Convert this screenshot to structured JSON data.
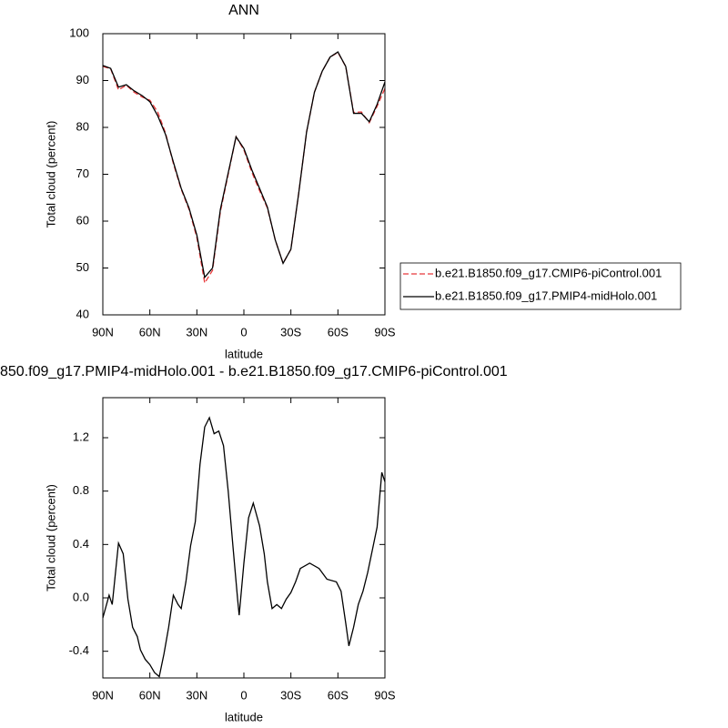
{
  "chart_data": [
    {
      "type": "line",
      "title": "ANN",
      "xlabel": "latitude",
      "ylabel": "Total cloud (percent)",
      "x": [
        90,
        85,
        80,
        75,
        70,
        65,
        60,
        55,
        50,
        45,
        40,
        35,
        30,
        25,
        20,
        15,
        10,
        5,
        0,
        -5,
        -10,
        -15,
        -20,
        -25,
        -30,
        -35,
        -40,
        -45,
        -50,
        -55,
        -60,
        -65,
        -70,
        -75,
        -80,
        -85,
        -90
      ],
      "series": [
        {
          "name": "b.e21.B1850.f09_g17.CMIP6-piControl.001",
          "color": "#e8383a",
          "linestyle": "dashed",
          "values": [
            93,
            92.5,
            88,
            89,
            87.5,
            86.5,
            85.8,
            83.3,
            78.8,
            72.3,
            66.8,
            62.5,
            56.5,
            46.8,
            49.5,
            62,
            70,
            78,
            75.2,
            70.5,
            66.5,
            62.8,
            56,
            51,
            54,
            66,
            79,
            87.5,
            92,
            95,
            96,
            93,
            83.2,
            83.3,
            81,
            84.5,
            88.3
          ]
        },
        {
          "name": "b.e21.B1850.f09_g17.PMIP4-midHolo.001",
          "color": "#000000",
          "linestyle": "solid",
          "values": [
            93.2,
            92.6,
            88.6,
            89.1,
            87.8,
            86.8,
            85.5,
            82.5,
            78.5,
            72.6,
            67,
            62.8,
            57,
            48,
            50,
            62.5,
            70.3,
            78,
            75.5,
            71,
            67,
            63,
            56,
            51,
            54,
            66,
            79,
            87.5,
            92,
            95,
            96.1,
            93,
            83,
            83,
            81.2,
            84.9,
            89.7
          ]
        }
      ],
      "xlim": [
        90,
        -90
      ],
      "xticks": [
        {
          "value": 90,
          "label": "90N"
        },
        {
          "value": 60,
          "label": "60N"
        },
        {
          "value": 30,
          "label": "30N"
        },
        0,
        {
          "value": -30,
          "label": "30S"
        },
        {
          "value": -60,
          "label": "60S"
        },
        {
          "value": -90,
          "label": "90S"
        }
      ],
      "ylim": [
        40,
        100
      ],
      "yticks": [
        40,
        50,
        60,
        70,
        80,
        90,
        100
      ],
      "legend": "right"
    },
    {
      "type": "line",
      "title": "850.f09_g17.PMIP4-midHolo.001 - b.e21.B1850.f09_g17.CMIP6-piControl.001",
      "xlabel": "latitude",
      "ylabel": "Total cloud (percent)",
      "x": [
        90,
        86,
        84,
        80,
        77,
        74,
        71,
        68,
        66,
        63,
        60,
        57,
        54,
        51,
        48,
        45,
        42,
        40,
        37,
        34,
        31,
        28,
        25,
        22,
        19,
        16,
        13,
        10,
        7,
        4,
        3,
        0,
        -3,
        -6,
        -10,
        -13,
        -15,
        -18,
        -21,
        -24,
        -27,
        -30,
        -33,
        -36,
        -42,
        -48,
        -53,
        -59,
        -62,
        -65,
        -67,
        -70,
        -73,
        -76,
        -79,
        -82,
        -85,
        -88,
        -90
      ],
      "series": [
        {
          "name": null,
          "color": "#000000",
          "linestyle": "solid",
          "values": [
            -0.15,
            0.02,
            -0.05,
            0.41,
            0.33,
            -0.01,
            -0.22,
            -0.29,
            -0.39,
            -0.46,
            -0.5,
            -0.56,
            -0.59,
            -0.42,
            -0.22,
            0.02,
            -0.05,
            -0.08,
            0.12,
            0.39,
            0.57,
            1.0,
            1.28,
            1.35,
            1.23,
            1.25,
            1.14,
            0.8,
            0.39,
            -0.01,
            -0.13,
            0.26,
            0.6,
            0.71,
            0.54,
            0.33,
            0.12,
            -0.08,
            -0.05,
            -0.08,
            -0.01,
            0.04,
            0.12,
            0.22,
            0.26,
            0.22,
            0.14,
            0.12,
            0.05,
            -0.19,
            -0.36,
            -0.22,
            -0.05,
            0.05,
            0.19,
            0.36,
            0.53,
            0.94,
            0.87
          ]
        }
      ],
      "xlim": [
        90,
        -90
      ],
      "xticks": [
        {
          "value": 90,
          "label": "90N"
        },
        {
          "value": 60,
          "label": "60N"
        },
        {
          "value": 30,
          "label": "30N"
        },
        0,
        {
          "value": -30,
          "label": "30S"
        },
        {
          "value": -60,
          "label": "60S"
        },
        {
          "value": -90,
          "label": "90S"
        }
      ],
      "ylim": [
        -0.6,
        1.5
      ],
      "yticks": [
        -0.4,
        {
          "value": 0,
          "label": "0.0"
        },
        0.4,
        0.8,
        1.2
      ]
    }
  ]
}
